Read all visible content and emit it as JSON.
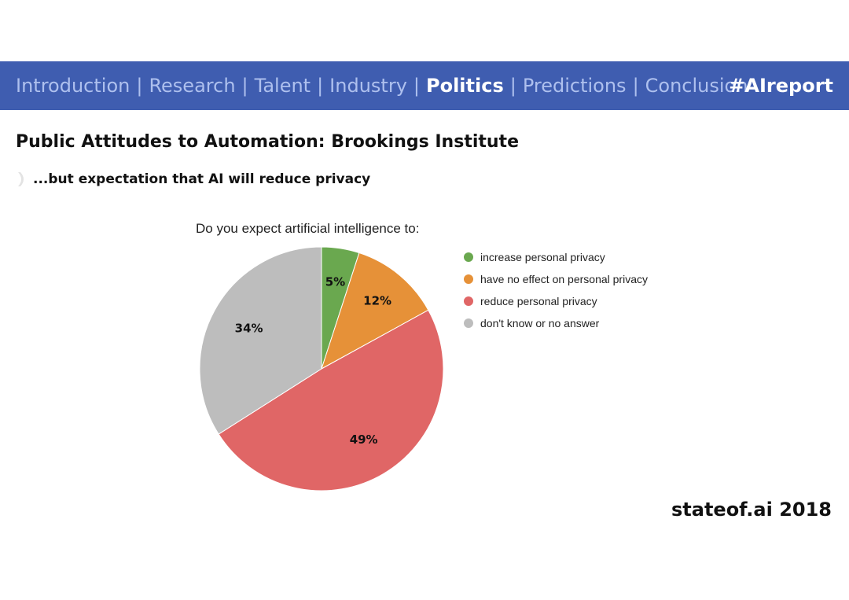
{
  "nav": {
    "items": [
      {
        "label": "Introduction",
        "active": false
      },
      {
        "label": "Research",
        "active": false
      },
      {
        "label": "Talent",
        "active": false
      },
      {
        "label": "Industry",
        "active": false
      },
      {
        "label": "Politics",
        "active": true
      },
      {
        "label": "Predictions",
        "active": false
      },
      {
        "label": "Conclusion",
        "active": false
      }
    ],
    "separator": "|",
    "hashtag": "#AIreport"
  },
  "slide": {
    "title": "Public Attitudes to Automation: Brookings Institute",
    "subtitle": "...but expectation that AI will reduce privacy",
    "bullet_icon": "chevron-bullet-icon"
  },
  "chart_data": {
    "type": "pie",
    "title": "Do you expect artificial intelligence to:",
    "categories": [
      "increase personal privacy",
      "have no effect on personal privacy",
      "reduce personal privacy",
      "don't know or no answer"
    ],
    "values": [
      5,
      12,
      49,
      34
    ],
    "labels": [
      "5%",
      "12%",
      "49%",
      "34%"
    ],
    "colors": [
      "#6aa84f",
      "#e69138",
      "#e06666",
      "#bdbdbd"
    ],
    "legend_position": "right"
  },
  "footer": "stateof.ai 2018",
  "colors": {
    "nav_background": "#3f5db0",
    "nav_inactive_text": "#aec0ee",
    "nav_active_text": "#ffffff"
  }
}
